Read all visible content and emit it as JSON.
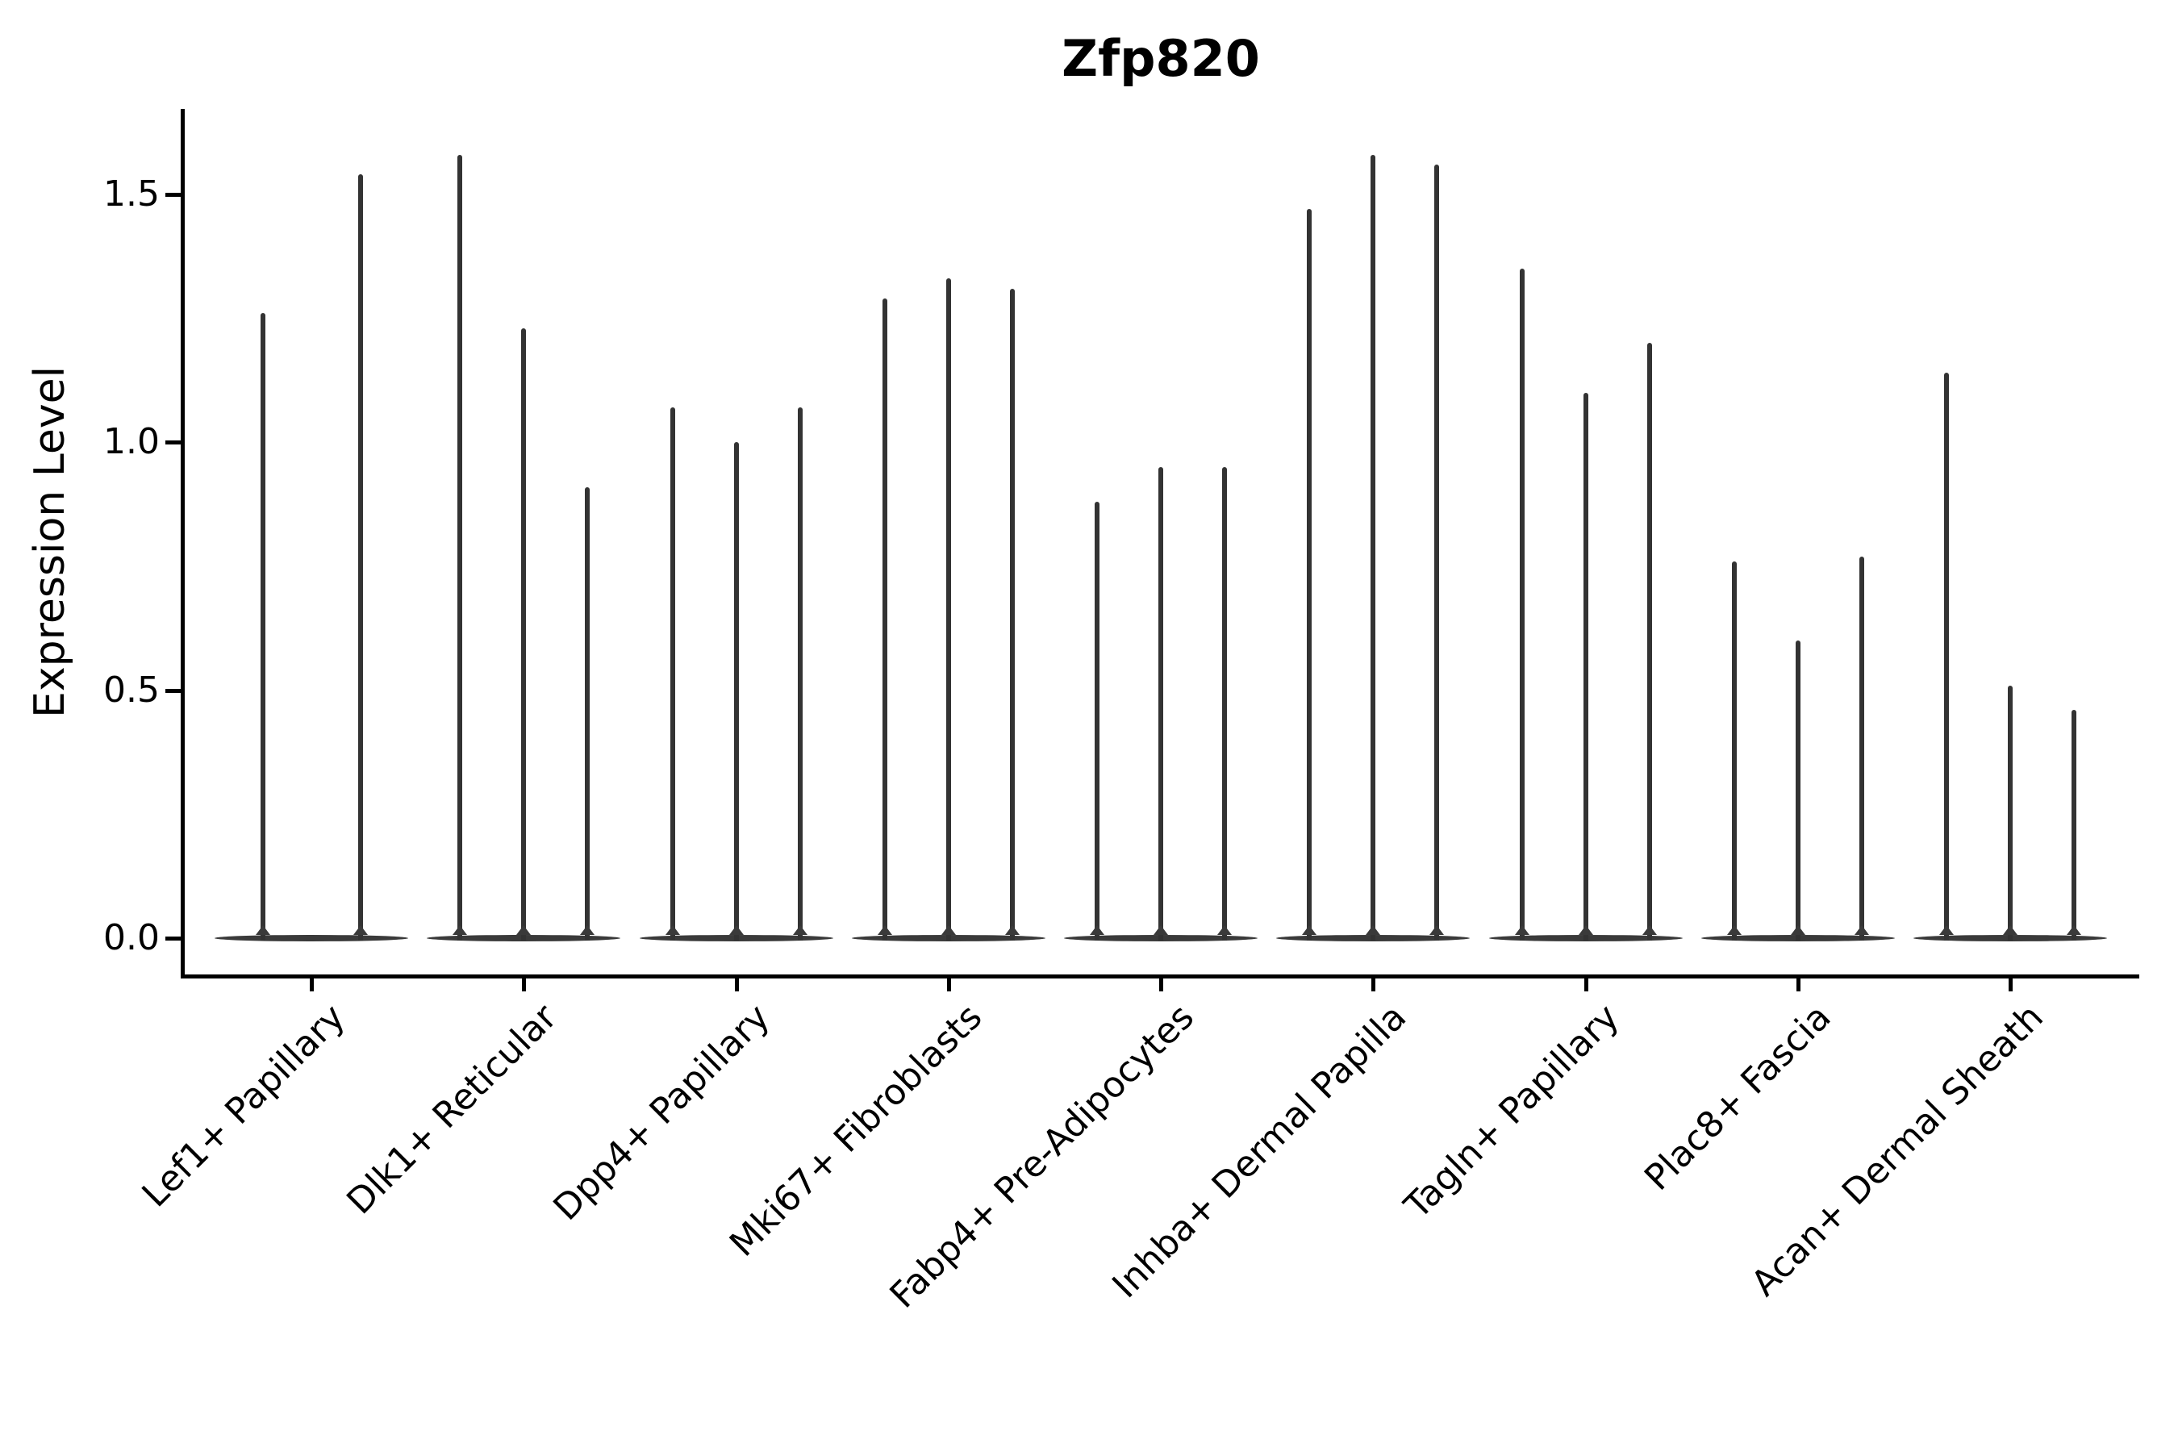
{
  "title": "Zfp820",
  "y_axis": {
    "label": "Expression Level",
    "ticks": [
      "0.0",
      "0.5",
      "1.0",
      "1.5"
    ]
  },
  "colors": {
    "ink": "#000000",
    "violin_stroke": "#333333",
    "violin_body": "#3a3a3a",
    "background": "#ffffff"
  },
  "chart_data": {
    "type": "violin",
    "title": "Zfp820",
    "xlabel": "",
    "ylabel": "Expression Level",
    "ylim": [
      -0.08,
      1.67
    ],
    "yticks": [
      0.0,
      0.5,
      1.0,
      1.5
    ],
    "grid": false,
    "legend": false,
    "baseline_value": 0.0,
    "description": "Needle-thin violins; nearly all density at 0 with thin tails up to each group maximum. Per category up to 3 sub-violins.",
    "categories": [
      "Lef1+ Papillary",
      "Dlk1+ Reticular",
      "Dpp4+ Papillary",
      "Mki67+ Fibroblasts",
      "Fabp4+ Pre-Adipocytes",
      "Inhba+ Dermal Papilla",
      "Tagln+ Papillary",
      "Plac8+ Fascia",
      "Acan+ Dermal Sheath"
    ],
    "series": [
      {
        "category": "Lef1+ Papillary",
        "spike_maxima": [
          1.26,
          1.54
        ]
      },
      {
        "category": "Dlk1+ Reticular",
        "spike_maxima": [
          1.58,
          1.23,
          0.91
        ]
      },
      {
        "category": "Dpp4+ Papillary",
        "spike_maxima": [
          1.07,
          1.0,
          1.07
        ]
      },
      {
        "category": "Mki67+ Fibroblasts",
        "spike_maxima": [
          1.29,
          1.33,
          1.31
        ]
      },
      {
        "category": "Fabp4+ Pre-Adipocytes",
        "spike_maxima": [
          0.88,
          0.95,
          0.95
        ]
      },
      {
        "category": "Inhba+ Dermal Papilla",
        "spike_maxima": [
          1.47,
          1.58,
          1.56
        ]
      },
      {
        "category": "Tagln+ Papillary",
        "spike_maxima": [
          1.35,
          1.1,
          1.2
        ]
      },
      {
        "category": "Plac8+ Fascia",
        "spike_maxima": [
          0.76,
          0.6,
          0.77
        ]
      },
      {
        "category": "Acan+ Dermal Sheath",
        "spike_maxima": [
          1.14,
          0.51,
          0.46
        ]
      }
    ]
  }
}
